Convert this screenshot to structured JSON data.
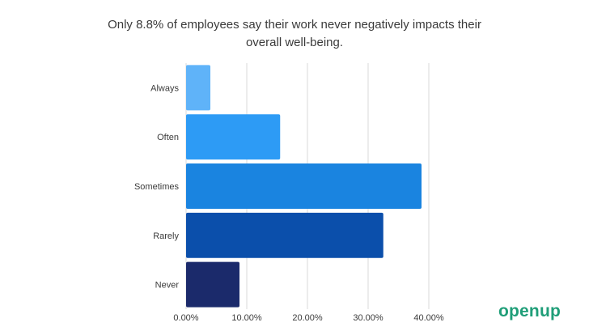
{
  "chart_data": {
    "type": "bar",
    "orientation": "horizontal",
    "title_lines": [
      "Only 8.8% of employees say their work never negatively impacts their",
      "overall well-being."
    ],
    "categories": [
      "Always",
      "Often",
      "Sometimes",
      "Rarely",
      "Never"
    ],
    "values": [
      4.0,
      15.5,
      38.8,
      32.5,
      8.8
    ],
    "colors": [
      "#5fb3f9",
      "#2d9bf5",
      "#1a84e0",
      "#0b4fab",
      "#1b2a6b"
    ],
    "x_ticks": [
      "0.00%",
      "10.00%",
      "20.00%",
      "30.00%",
      "40.00%"
    ],
    "xlim": [
      0,
      40
    ],
    "grid": true,
    "xlabel": "",
    "ylabel": ""
  },
  "brand": {
    "logo_text": "openup"
  }
}
